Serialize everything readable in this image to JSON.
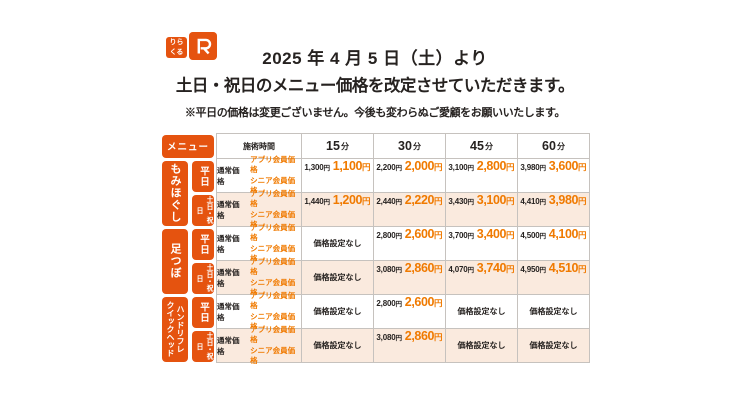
{
  "colors": {
    "brand_orange": "#e5530f",
    "member_price_orange": "#f07a00",
    "weekend_row_pink": "#faeade",
    "text_dark": "#262220"
  },
  "logo": {
    "left_line1": "りら",
    "left_line2": "くる",
    "mark_letter": "R"
  },
  "header": {
    "title_line1": "2025 年 4 月 5 日（土）より",
    "title_line2": "土日・祝日のメニュー価格を改定させていただきます。",
    "note": "※平日の価格は変更ございません。今後も変わらぬご愛顧をお願いいたします。"
  },
  "table": {
    "menu_label": "メニュー",
    "time_header": "施術時間",
    "durations": [
      {
        "num": "15",
        "unit": "分"
      },
      {
        "num": "30",
        "unit": "分"
      },
      {
        "num": "45",
        "unit": "分"
      },
      {
        "num": "60",
        "unit": "分"
      }
    ],
    "labels": {
      "normal": "通常価格",
      "member1": "アプリ会員価格",
      "member2": "シニア会員価格"
    },
    "no_price_text": "価格設定なし",
    "yen": "円",
    "groups": [
      {
        "lines": [
          "もみほぐし"
        ],
        "small": false,
        "rows": [
          {
            "day": "平日",
            "weekend": false,
            "cells": [
              {
                "normal": "1,300",
                "member": "1,100"
              },
              {
                "normal": "2,200",
                "member": "2,000"
              },
              {
                "normal": "3,100",
                "member": "2,800"
              },
              {
                "normal": "3,980",
                "member": "3,600"
              }
            ]
          },
          {
            "day": "土日・祝日",
            "weekend": true,
            "cells": [
              {
                "normal": "1,440",
                "member": "1,200"
              },
              {
                "normal": "2,440",
                "member": "2,220"
              },
              {
                "normal": "3,430",
                "member": "3,100"
              },
              {
                "normal": "4,410",
                "member": "3,980"
              }
            ]
          }
        ]
      },
      {
        "lines": [
          "足つぼ"
        ],
        "small": false,
        "rows": [
          {
            "day": "平日",
            "weekend": false,
            "cells": [
              {
                "none": true
              },
              {
                "normal": "2,800",
                "member": "2,600"
              },
              {
                "normal": "3,700",
                "member": "3,400"
              },
              {
                "normal": "4,500",
                "member": "4,100"
              }
            ]
          },
          {
            "day": "土日・祝日",
            "weekend": true,
            "cells": [
              {
                "none": true
              },
              {
                "normal": "3,080",
                "member": "2,860"
              },
              {
                "normal": "4,070",
                "member": "3,740"
              },
              {
                "normal": "4,950",
                "member": "4,510"
              }
            ]
          }
        ]
      },
      {
        "lines": [
          "ハンドリフレ",
          "クイックヘッド"
        ],
        "small": true,
        "rows": [
          {
            "day": "平日",
            "weekend": false,
            "cells": [
              {
                "none": true
              },
              {
                "normal": "2,800",
                "member": "2,600"
              },
              {
                "none": true
              },
              {
                "none": true
              }
            ]
          },
          {
            "day": "土日・祝日",
            "weekend": true,
            "cells": [
              {
                "none": true
              },
              {
                "normal": "3,080",
                "member": "2,860"
              },
              {
                "none": true
              },
              {
                "none": true
              }
            ]
          }
        ]
      }
    ]
  }
}
